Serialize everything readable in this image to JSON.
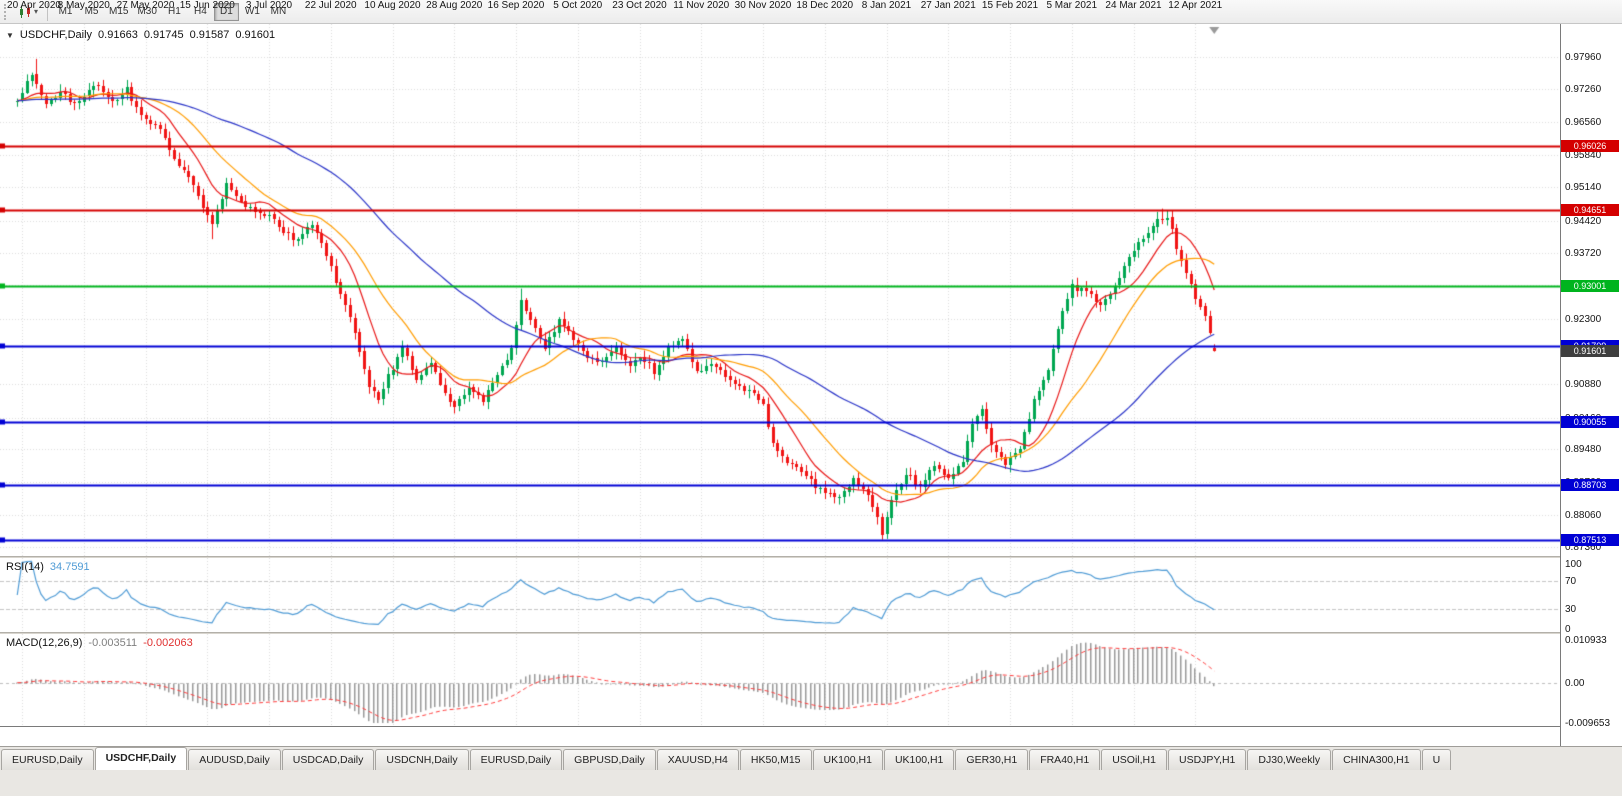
{
  "toolbar": {
    "timeframes": [
      "M1",
      "M5",
      "M15",
      "M30",
      "H1",
      "H4",
      "D1",
      "W1",
      "MN"
    ],
    "active_timeframe": "D1",
    "dropdown_caret": "▾"
  },
  "main_panel": {
    "menu_caret": "▼",
    "title": "USDCHF,Daily",
    "open": "0.91663",
    "high": "0.91745",
    "low": "0.91587",
    "close": "0.91601"
  },
  "rsi_panel": {
    "label": "RSI(14)",
    "value": "34.7591"
  },
  "macd_panel": {
    "label": "MACD(12,26,9)",
    "value_main": "-0.003511",
    "value_signal": "-0.002063"
  },
  "current_price_badge": {
    "value": "0.91601",
    "color": "#3f3f3f"
  },
  "tabs": [
    {
      "label": "EURUSD,Daily",
      "active": false
    },
    {
      "label": "USDCHF,Daily",
      "active": true
    },
    {
      "label": "AUDUSD,Daily",
      "active": false
    },
    {
      "label": "USDCAD,Daily",
      "active": false
    },
    {
      "label": "USDCNH,Daily",
      "active": false
    },
    {
      "label": "EURUSD,Daily",
      "active": false
    },
    {
      "label": "GBPUSD,Daily",
      "active": false
    },
    {
      "label": "XAUUSD,H4",
      "active": false
    },
    {
      "label": "HK50,M15",
      "active": false
    },
    {
      "label": "UK100,H1",
      "active": false
    },
    {
      "label": "UK100,H1",
      "active": false
    },
    {
      "label": "GER30,H1",
      "active": false
    },
    {
      "label": "FRA40,H1",
      "active": false
    },
    {
      "label": "USOil,H1",
      "active": false
    },
    {
      "label": "USDJPY,H1",
      "active": false
    },
    {
      "label": "DJ30,Weekly",
      "active": false
    },
    {
      "label": "CHINA300,H1",
      "active": false
    },
    {
      "label": "U",
      "active": false
    }
  ],
  "chart_data": {
    "type": "candlestick",
    "symbol": "USDCHF",
    "timeframe": "Daily",
    "bars": 253,
    "last_bar_ohlc": [
      0.91663,
      0.91745,
      0.91587,
      0.91601
    ],
    "price_axis_ticks": [
      "0.97960",
      "0.97260",
      "0.96560",
      "0.95840",
      "0.95140",
      "0.94420",
      "0.93720",
      "0.93020",
      "0.92300",
      "0.90880",
      "0.90160",
      "0.89480",
      "0.88760",
      "0.88060",
      "0.87360"
    ],
    "x_axis_labels": [
      "20 Apr 2020",
      "8 May 2020",
      "27 May 2020",
      "15 Jun 2020",
      "3 Jul 2020",
      "22 Jul 2020",
      "10 Aug 2020",
      "28 Aug 2020",
      "16 Sep 2020",
      "5 Oct 2020",
      "23 Oct 2020",
      "11 Nov 2020",
      "30 Nov 2020",
      "18 Dec 2020",
      "8 Jan 2021",
      "27 Jan 2021",
      "15 Feb 2021",
      "5 Mar 2021",
      "24 Mar 2021",
      "12 Apr 2021"
    ],
    "price_path_anchors": [
      [
        0,
        0.97
      ],
      [
        3,
        0.976
      ],
      [
        6,
        0.969
      ],
      [
        9,
        0.972
      ],
      [
        12,
        0.9695
      ],
      [
        14,
        0.9715
      ],
      [
        17,
        0.9735
      ],
      [
        20,
        0.97
      ],
      [
        23,
        0.9725
      ],
      [
        27,
        0.9655
      ],
      [
        30,
        0.964
      ],
      [
        33,
        0.9575
      ],
      [
        36,
        0.954
      ],
      [
        39,
        0.9475
      ],
      [
        41,
        0.944
      ],
      [
        44,
        0.952
      ],
      [
        47,
        0.9478
      ],
      [
        50,
        0.946
      ],
      [
        53,
        0.9452
      ],
      [
        56,
        0.9415
      ],
      [
        59,
        0.9398
      ],
      [
        62,
        0.9435
      ],
      [
        64,
        0.9395
      ],
      [
        66,
        0.9345
      ],
      [
        68,
        0.928
      ],
      [
        70,
        0.923
      ],
      [
        72,
        0.916
      ],
      [
        74,
        0.9085
      ],
      [
        76,
        0.906
      ],
      [
        79,
        0.9125
      ],
      [
        81,
        0.917
      ],
      [
        84,
        0.9095
      ],
      [
        87,
        0.9135
      ],
      [
        90,
        0.907
      ],
      [
        92,
        0.904
      ],
      [
        95,
        0.9085
      ],
      [
        98,
        0.9055
      ],
      [
        101,
        0.9105
      ],
      [
        104,
        0.916
      ],
      [
        106,
        0.927
      ],
      [
        108,
        0.9225
      ],
      [
        111,
        0.9165
      ],
      [
        114,
        0.9225
      ],
      [
        117,
        0.9185
      ],
      [
        120,
        0.915
      ],
      [
        123,
        0.9135
      ],
      [
        126,
        0.9165
      ],
      [
        129,
        0.913
      ],
      [
        131,
        0.915
      ],
      [
        134,
        0.9115
      ],
      [
        137,
        0.9165
      ],
      [
        140,
        0.9185
      ],
      [
        143,
        0.9115
      ],
      [
        146,
        0.9135
      ],
      [
        149,
        0.911
      ],
      [
        152,
        0.9085
      ],
      [
        155,
        0.9065
      ],
      [
        157,
        0.904
      ],
      [
        159,
        0.8955
      ],
      [
        162,
        0.892
      ],
      [
        165,
        0.8898
      ],
      [
        168,
        0.8868
      ],
      [
        170,
        0.885
      ],
      [
        173,
        0.8842
      ],
      [
        176,
        0.8885
      ],
      [
        179,
        0.8845
      ],
      [
        181,
        0.8795
      ],
      [
        182,
        0.8765
      ],
      [
        184,
        0.884
      ],
      [
        187,
        0.8895
      ],
      [
        190,
        0.8868
      ],
      [
        193,
        0.8912
      ],
      [
        196,
        0.8882
      ],
      [
        199,
        0.8925
      ],
      [
        201,
        0.9005
      ],
      [
        203,
        0.9035
      ],
      [
        205,
        0.896
      ],
      [
        208,
        0.8918
      ],
      [
        211,
        0.8945
      ],
      [
        214,
        0.905
      ],
      [
        217,
        0.912
      ],
      [
        220,
        0.9245
      ],
      [
        222,
        0.9298
      ],
      [
        225,
        0.9288
      ],
      [
        228,
        0.9258
      ],
      [
        231,
        0.9302
      ],
      [
        234,
        0.936
      ],
      [
        237,
        0.9405
      ],
      [
        240,
        0.9445
      ],
      [
        242,
        0.9452
      ],
      [
        244,
        0.9385
      ],
      [
        246,
        0.933
      ],
      [
        248,
        0.9272
      ],
      [
        250,
        0.9235
      ],
      [
        252,
        0.916
      ]
    ],
    "wick_extremes": {
      "4": {
        "high": 0.9792
      },
      "41": {
        "low": 0.9402
      },
      "106": {
        "high": 0.9295
      },
      "182": {
        "low": 0.8752
      },
      "241": {
        "high": 0.9468
      }
    },
    "horizontal_lines": [
      {
        "price": 0.96026,
        "label": "0.96026",
        "color": "#d40000",
        "width": 2
      },
      {
        "price": 0.94651,
        "label": "0.94651",
        "color": "#d40000",
        "width": 2
      },
      {
        "price": 0.93001,
        "label": "0.93001",
        "color": "#00b41e",
        "width": 2
      },
      {
        "price": 0.91709,
        "label": "0.91709",
        "color": "#0000d4",
        "width": 2
      },
      {
        "price": 0.90055,
        "label": "0.90055",
        "color": "#0000d4",
        "width": 2
      },
      {
        "price": 0.88703,
        "label": "0.88703",
        "color": "#0000d4",
        "width": 2
      },
      {
        "price": 0.87513,
        "label": "0.87513",
        "color": "#0000d4",
        "width": 2
      }
    ],
    "moving_averages": [
      {
        "period": 10,
        "color": "#e81717"
      },
      {
        "period": 21,
        "color": "#ff9c00"
      },
      {
        "period": 55,
        "color": "#2b35c8"
      }
    ],
    "rsi": {
      "period": 14,
      "current": 34.7591,
      "scale": [
        0,
        100
      ],
      "levels": [
        70,
        30
      ],
      "color": "#4f9bd5",
      "axis_labels": [
        "100",
        "70",
        "30",
        "0"
      ]
    },
    "macd": {
      "fast": 12,
      "slow": 26,
      "signal": 9,
      "current_main": -0.003511,
      "current_signal": -0.002063,
      "scale_max": 0.010933,
      "scale_min": -0.009653,
      "axis_labels": [
        "0.010933",
        "0.00",
        "-0.009653"
      ],
      "histogram_color": "#999999",
      "signal_color": "#ff3b3b"
    },
    "colors": {
      "up": "#00a651",
      "down": "#f01414",
      "background": "#ffffff",
      "grid": "#dadada",
      "shift_marker": "#9a9a9a"
    }
  }
}
